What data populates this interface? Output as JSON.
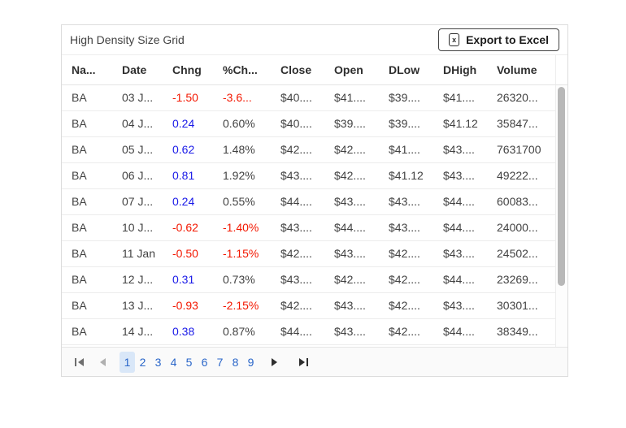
{
  "header": {
    "title": "High Density Size Grid",
    "export_button_label": "Export to Excel",
    "export_icon": "excel-file-icon"
  },
  "grid": {
    "columns": [
      "Na...",
      "Date",
      "Chng",
      "%Ch...",
      "Close",
      "Open",
      "DLow",
      "DHigh",
      "Volume"
    ],
    "rows": [
      {
        "name": "BA",
        "date": "03 J...",
        "chng": "-1.50",
        "pct": "-3.6...",
        "close": "$40....",
        "open": "$41....",
        "dlow": "$39....",
        "dhigh": "$41....",
        "volume": "26320..."
      },
      {
        "name": "BA",
        "date": "04 J...",
        "chng": "0.24",
        "pct": "0.60%",
        "close": "$40....",
        "open": "$39....",
        "dlow": "$39....",
        "dhigh": "$41.12",
        "volume": "35847..."
      },
      {
        "name": "BA",
        "date": "05 J...",
        "chng": "0.62",
        "pct": "1.48%",
        "close": "$42....",
        "open": "$42....",
        "dlow": "$41....",
        "dhigh": "$43....",
        "volume": "7631700"
      },
      {
        "name": "BA",
        "date": "06 J...",
        "chng": "0.81",
        "pct": "1.92%",
        "close": "$43....",
        "open": "$42....",
        "dlow": "$41.12",
        "dhigh": "$43....",
        "volume": "49222..."
      },
      {
        "name": "BA",
        "date": "07 J...",
        "chng": "0.24",
        "pct": "0.55%",
        "close": "$44....",
        "open": "$43....",
        "dlow": "$43....",
        "dhigh": "$44....",
        "volume": "60083..."
      },
      {
        "name": "BA",
        "date": "10 J...",
        "chng": "-0.62",
        "pct": "-1.40%",
        "close": "$43....",
        "open": "$44....",
        "dlow": "$43....",
        "dhigh": "$44....",
        "volume": "24000..."
      },
      {
        "name": "BA",
        "date": "11 Jan",
        "chng": "-0.50",
        "pct": "-1.15%",
        "close": "$42....",
        "open": "$43....",
        "dlow": "$42....",
        "dhigh": "$43....",
        "volume": "24502..."
      },
      {
        "name": "BA",
        "date": "12 J...",
        "chng": "0.31",
        "pct": "0.73%",
        "close": "$43....",
        "open": "$42....",
        "dlow": "$42....",
        "dhigh": "$44....",
        "volume": "23269..."
      },
      {
        "name": "BA",
        "date": "13 J...",
        "chng": "-0.93",
        "pct": "-2.15%",
        "close": "$42....",
        "open": "$43....",
        "dlow": "$42....",
        "dhigh": "$43....",
        "volume": "30301..."
      },
      {
        "name": "BA",
        "date": "14 J...",
        "chng": "0.38",
        "pct": "0.87%",
        "close": "$44....",
        "open": "$43....",
        "dlow": "$42....",
        "dhigh": "$44....",
        "volume": "38349..."
      }
    ]
  },
  "pager": {
    "pages": [
      "1",
      "2",
      "3",
      "4",
      "5",
      "6",
      "7",
      "8",
      "9"
    ],
    "current_page": "1",
    "icons": {
      "first": "first-page-icon",
      "previous": "previous-page-icon",
      "next": "next-page-icon",
      "last": "last-page-icon"
    }
  },
  "colors": {
    "positive_change": "#1a1ae8",
    "negative_change": "#f31700",
    "page_link": "#2a66c9",
    "selected_page_bg": "#d9e7f8"
  }
}
